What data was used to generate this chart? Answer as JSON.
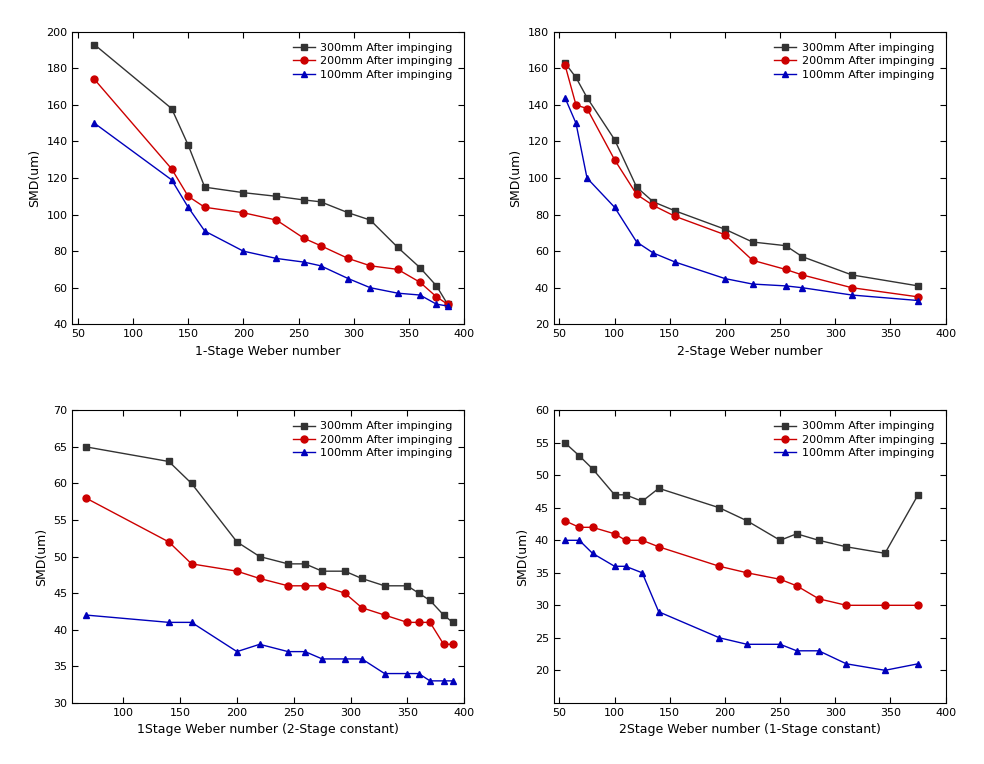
{
  "plot1": {
    "xlabel": "1-Stage Weber number",
    "ylabel": "SMD(um)",
    "ylim": [
      40,
      200
    ],
    "xlim": [
      45,
      400
    ],
    "yticks": [
      40,
      60,
      80,
      100,
      120,
      140,
      160,
      180,
      200
    ],
    "xticks": [
      50,
      100,
      150,
      200,
      250,
      300,
      350,
      400
    ],
    "series": [
      {
        "label": "300mm After impinging",
        "color": "#333333",
        "marker": "s",
        "x": [
          65,
          135,
          150,
          165,
          200,
          230,
          255,
          270,
          295,
          315,
          340,
          360,
          375,
          385
        ],
        "y": [
          193,
          158,
          138,
          115,
          112,
          110,
          108,
          107,
          101,
          97,
          82,
          71,
          61,
          51
        ]
      },
      {
        "label": "200mm After impinging",
        "color": "#cc0000",
        "marker": "o",
        "x": [
          65,
          135,
          150,
          165,
          200,
          230,
          255,
          270,
          295,
          315,
          340,
          360,
          375,
          385
        ],
        "y": [
          174,
          125,
          110,
          104,
          101,
          97,
          87,
          83,
          76,
          72,
          70,
          63,
          55,
          51
        ]
      },
      {
        "label": "100mm After impinging",
        "color": "#0000bb",
        "marker": "^",
        "x": [
          65,
          135,
          150,
          165,
          200,
          230,
          255,
          270,
          295,
          315,
          340,
          360,
          375,
          385
        ],
        "y": [
          150,
          119,
          104,
          91,
          80,
          76,
          74,
          72,
          65,
          60,
          57,
          56,
          51,
          50
        ]
      }
    ]
  },
  "plot2": {
    "xlabel": "2-Stage Weber number",
    "ylabel": "SMD(um)",
    "ylim": [
      20,
      180
    ],
    "xlim": [
      45,
      400
    ],
    "yticks": [
      20,
      40,
      60,
      80,
      100,
      120,
      140,
      160,
      180
    ],
    "xticks": [
      50,
      100,
      150,
      200,
      250,
      300,
      350,
      400
    ],
    "series": [
      {
        "label": "300mm After impinging",
        "color": "#333333",
        "marker": "s",
        "x": [
          55,
          65,
          75,
          100,
          120,
          135,
          155,
          200,
          225,
          255,
          270,
          315,
          375
        ],
        "y": [
          163,
          155,
          144,
          121,
          95,
          87,
          82,
          72,
          65,
          63,
          57,
          47,
          41
        ]
      },
      {
        "label": "200mm After impinging",
        "color": "#cc0000",
        "marker": "o",
        "x": [
          55,
          65,
          75,
          100,
          120,
          135,
          155,
          200,
          225,
          255,
          270,
          315,
          375
        ],
        "y": [
          162,
          140,
          138,
          110,
          91,
          85,
          79,
          69,
          55,
          50,
          47,
          40,
          35
        ]
      },
      {
        "label": "100mm After impinging",
        "color": "#0000bb",
        "marker": "^",
        "x": [
          55,
          65,
          75,
          100,
          120,
          135,
          155,
          200,
          225,
          255,
          270,
          315,
          375
        ],
        "y": [
          144,
          130,
          100,
          84,
          65,
          59,
          54,
          45,
          42,
          41,
          40,
          36,
          33
        ]
      }
    ]
  },
  "plot3": {
    "xlabel": "1Stage Weber number (2-Stage constant)",
    "ylabel": "SMD(um)",
    "ylim": [
      30,
      70
    ],
    "xlim": [
      55,
      400
    ],
    "yticks": [
      30,
      35,
      40,
      45,
      50,
      55,
      60,
      65,
      70
    ],
    "xticks": [
      100,
      150,
      200,
      250,
      300,
      350,
      400
    ],
    "series": [
      {
        "label": "300mm After impinging",
        "color": "#333333",
        "marker": "s",
        "x": [
          67,
          140,
          160,
          200,
          220,
          245,
          260,
          275,
          295,
          310,
          330,
          350,
          360,
          370,
          382,
          390
        ],
        "y": [
          65,
          63,
          60,
          52,
          50,
          49,
          49,
          48,
          48,
          47,
          46,
          46,
          45,
          44,
          42,
          41
        ]
      },
      {
        "label": "200mm After impinging",
        "color": "#cc0000",
        "marker": "o",
        "x": [
          67,
          140,
          160,
          200,
          220,
          245,
          260,
          275,
          295,
          310,
          330,
          350,
          360,
          370,
          382,
          390
        ],
        "y": [
          58,
          52,
          49,
          48,
          47,
          46,
          46,
          46,
          45,
          43,
          42,
          41,
          41,
          41,
          38,
          38
        ]
      },
      {
        "label": "100mm After impinging",
        "color": "#0000bb",
        "marker": "^",
        "x": [
          67,
          140,
          160,
          200,
          220,
          245,
          260,
          275,
          295,
          310,
          330,
          350,
          360,
          370,
          382,
          390
        ],
        "y": [
          42,
          41,
          41,
          37,
          38,
          37,
          37,
          36,
          36,
          36,
          34,
          34,
          34,
          33,
          33,
          33
        ]
      }
    ]
  },
  "plot4": {
    "xlabel": "2Stage Weber number (1-Stage constant)",
    "ylabel": "SMD(um)",
    "ylim": [
      15,
      60
    ],
    "xlim": [
      45,
      400
    ],
    "yticks": [
      20,
      25,
      30,
      35,
      40,
      45,
      50,
      55,
      60
    ],
    "xticks": [
      50,
      100,
      150,
      200,
      250,
      300,
      350,
      400
    ],
    "series": [
      {
        "label": "300mm After impinging",
        "color": "#333333",
        "marker": "s",
        "x": [
          55,
          68,
          80,
          100,
          110,
          125,
          140,
          195,
          220,
          250,
          265,
          285,
          310,
          345,
          375
        ],
        "y": [
          55,
          53,
          51,
          47,
          47,
          46,
          48,
          45,
          43,
          40,
          41,
          40,
          39,
          38,
          47
        ]
      },
      {
        "label": "200mm After impinging",
        "color": "#cc0000",
        "marker": "o",
        "x": [
          55,
          68,
          80,
          100,
          110,
          125,
          140,
          195,
          220,
          250,
          265,
          285,
          310,
          345,
          375
        ],
        "y": [
          43,
          42,
          42,
          41,
          40,
          40,
          39,
          36,
          35,
          34,
          33,
          31,
          30,
          30,
          30
        ]
      },
      {
        "label": "100mm After impinging",
        "color": "#0000bb",
        "marker": "^",
        "x": [
          55,
          68,
          80,
          100,
          110,
          125,
          140,
          195,
          220,
          250,
          265,
          285,
          310,
          345,
          375
        ],
        "y": [
          40,
          40,
          38,
          36,
          36,
          35,
          29,
          25,
          24,
          24,
          23,
          23,
          21,
          20,
          21
        ]
      }
    ]
  },
  "markersize": 5,
  "linewidth": 1.0,
  "background_color": "#ffffff",
  "tick_fontsize": 8,
  "label_fontsize": 9,
  "legend_fontsize": 8
}
